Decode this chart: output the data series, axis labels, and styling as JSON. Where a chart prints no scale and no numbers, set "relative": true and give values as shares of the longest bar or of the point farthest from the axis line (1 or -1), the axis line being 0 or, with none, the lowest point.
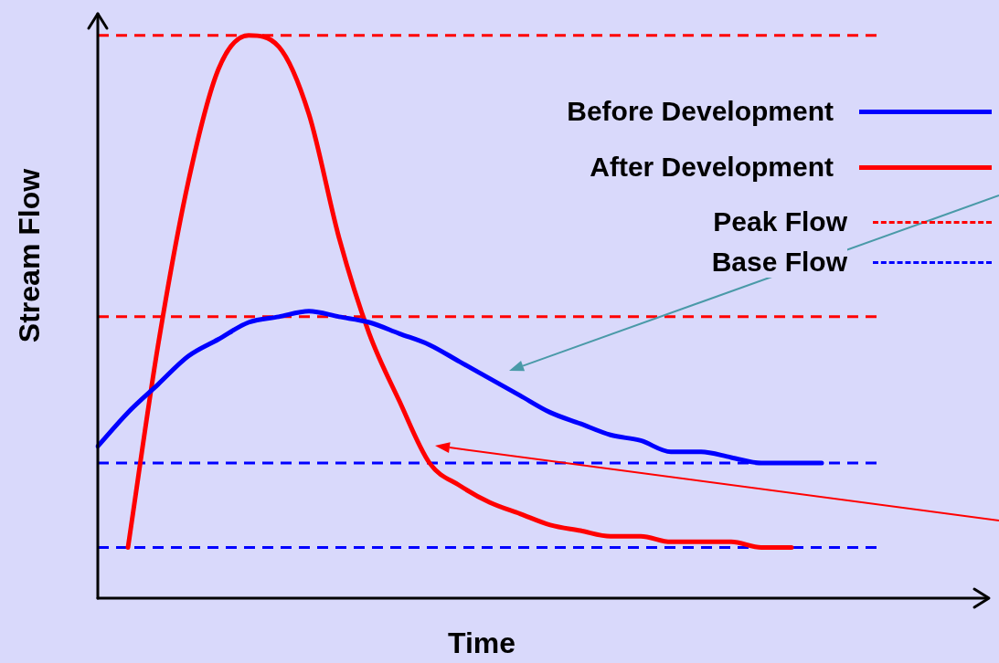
{
  "chart_data": {
    "type": "line",
    "relative": true,
    "xlabel": "Time",
    "ylabel": "Stream Flow",
    "legend": "top right",
    "tick_labels": false,
    "grid": false,
    "categories": [
      null,
      null,
      null,
      null,
      null,
      null,
      null,
      null,
      null,
      null,
      null,
      null,
      null,
      null,
      null,
      null,
      null,
      null,
      null,
      null,
      null,
      null,
      null,
      null,
      null,
      null,
      null,
      null,
      null,
      null
    ],
    "series": [
      {
        "name": "Before Development",
        "color": "#0000ff",
        "values": [
          0.27,
          0.33,
          0.38,
          0.43,
          0.46,
          0.49,
          0.5,
          0.51,
          0.5,
          0.49,
          0.47,
          0.45,
          0.42,
          0.39,
          0.36,
          0.33,
          0.31,
          0.29,
          0.28,
          0.26,
          0.26,
          0.25,
          0.24,
          0.24,
          0.24,
          null,
          null,
          null,
          null,
          null
        ]
      },
      {
        "name": "After Development",
        "color": "#ff0000",
        "values": [
          null,
          0.09,
          0.45,
          0.74,
          0.94,
          1.0,
          0.98,
          0.86,
          0.64,
          0.47,
          0.35,
          0.24,
          0.2,
          0.17,
          0.15,
          0.13,
          0.12,
          0.11,
          0.11,
          0.1,
          0.1,
          0.1,
          0.09,
          0.09,
          null,
          null,
          null,
          null,
          null,
          null
        ]
      }
    ],
    "ref_lines": [
      {
        "axis": "y",
        "value": 1.0,
        "label": "Peak Flow",
        "color": "#ff0000",
        "line_style": "dashed"
      },
      {
        "axis": "y",
        "value": 0.5,
        "color": "#ff0000",
        "line_style": "dashed"
      },
      {
        "axis": "y",
        "value": 0.24,
        "label": "Base Flow",
        "color": "#0000ff",
        "line_style": "dashed"
      },
      {
        "axis": "y",
        "value": 0.09,
        "color": "#0000ff",
        "line_style": "dashed"
      }
    ]
  }
}
